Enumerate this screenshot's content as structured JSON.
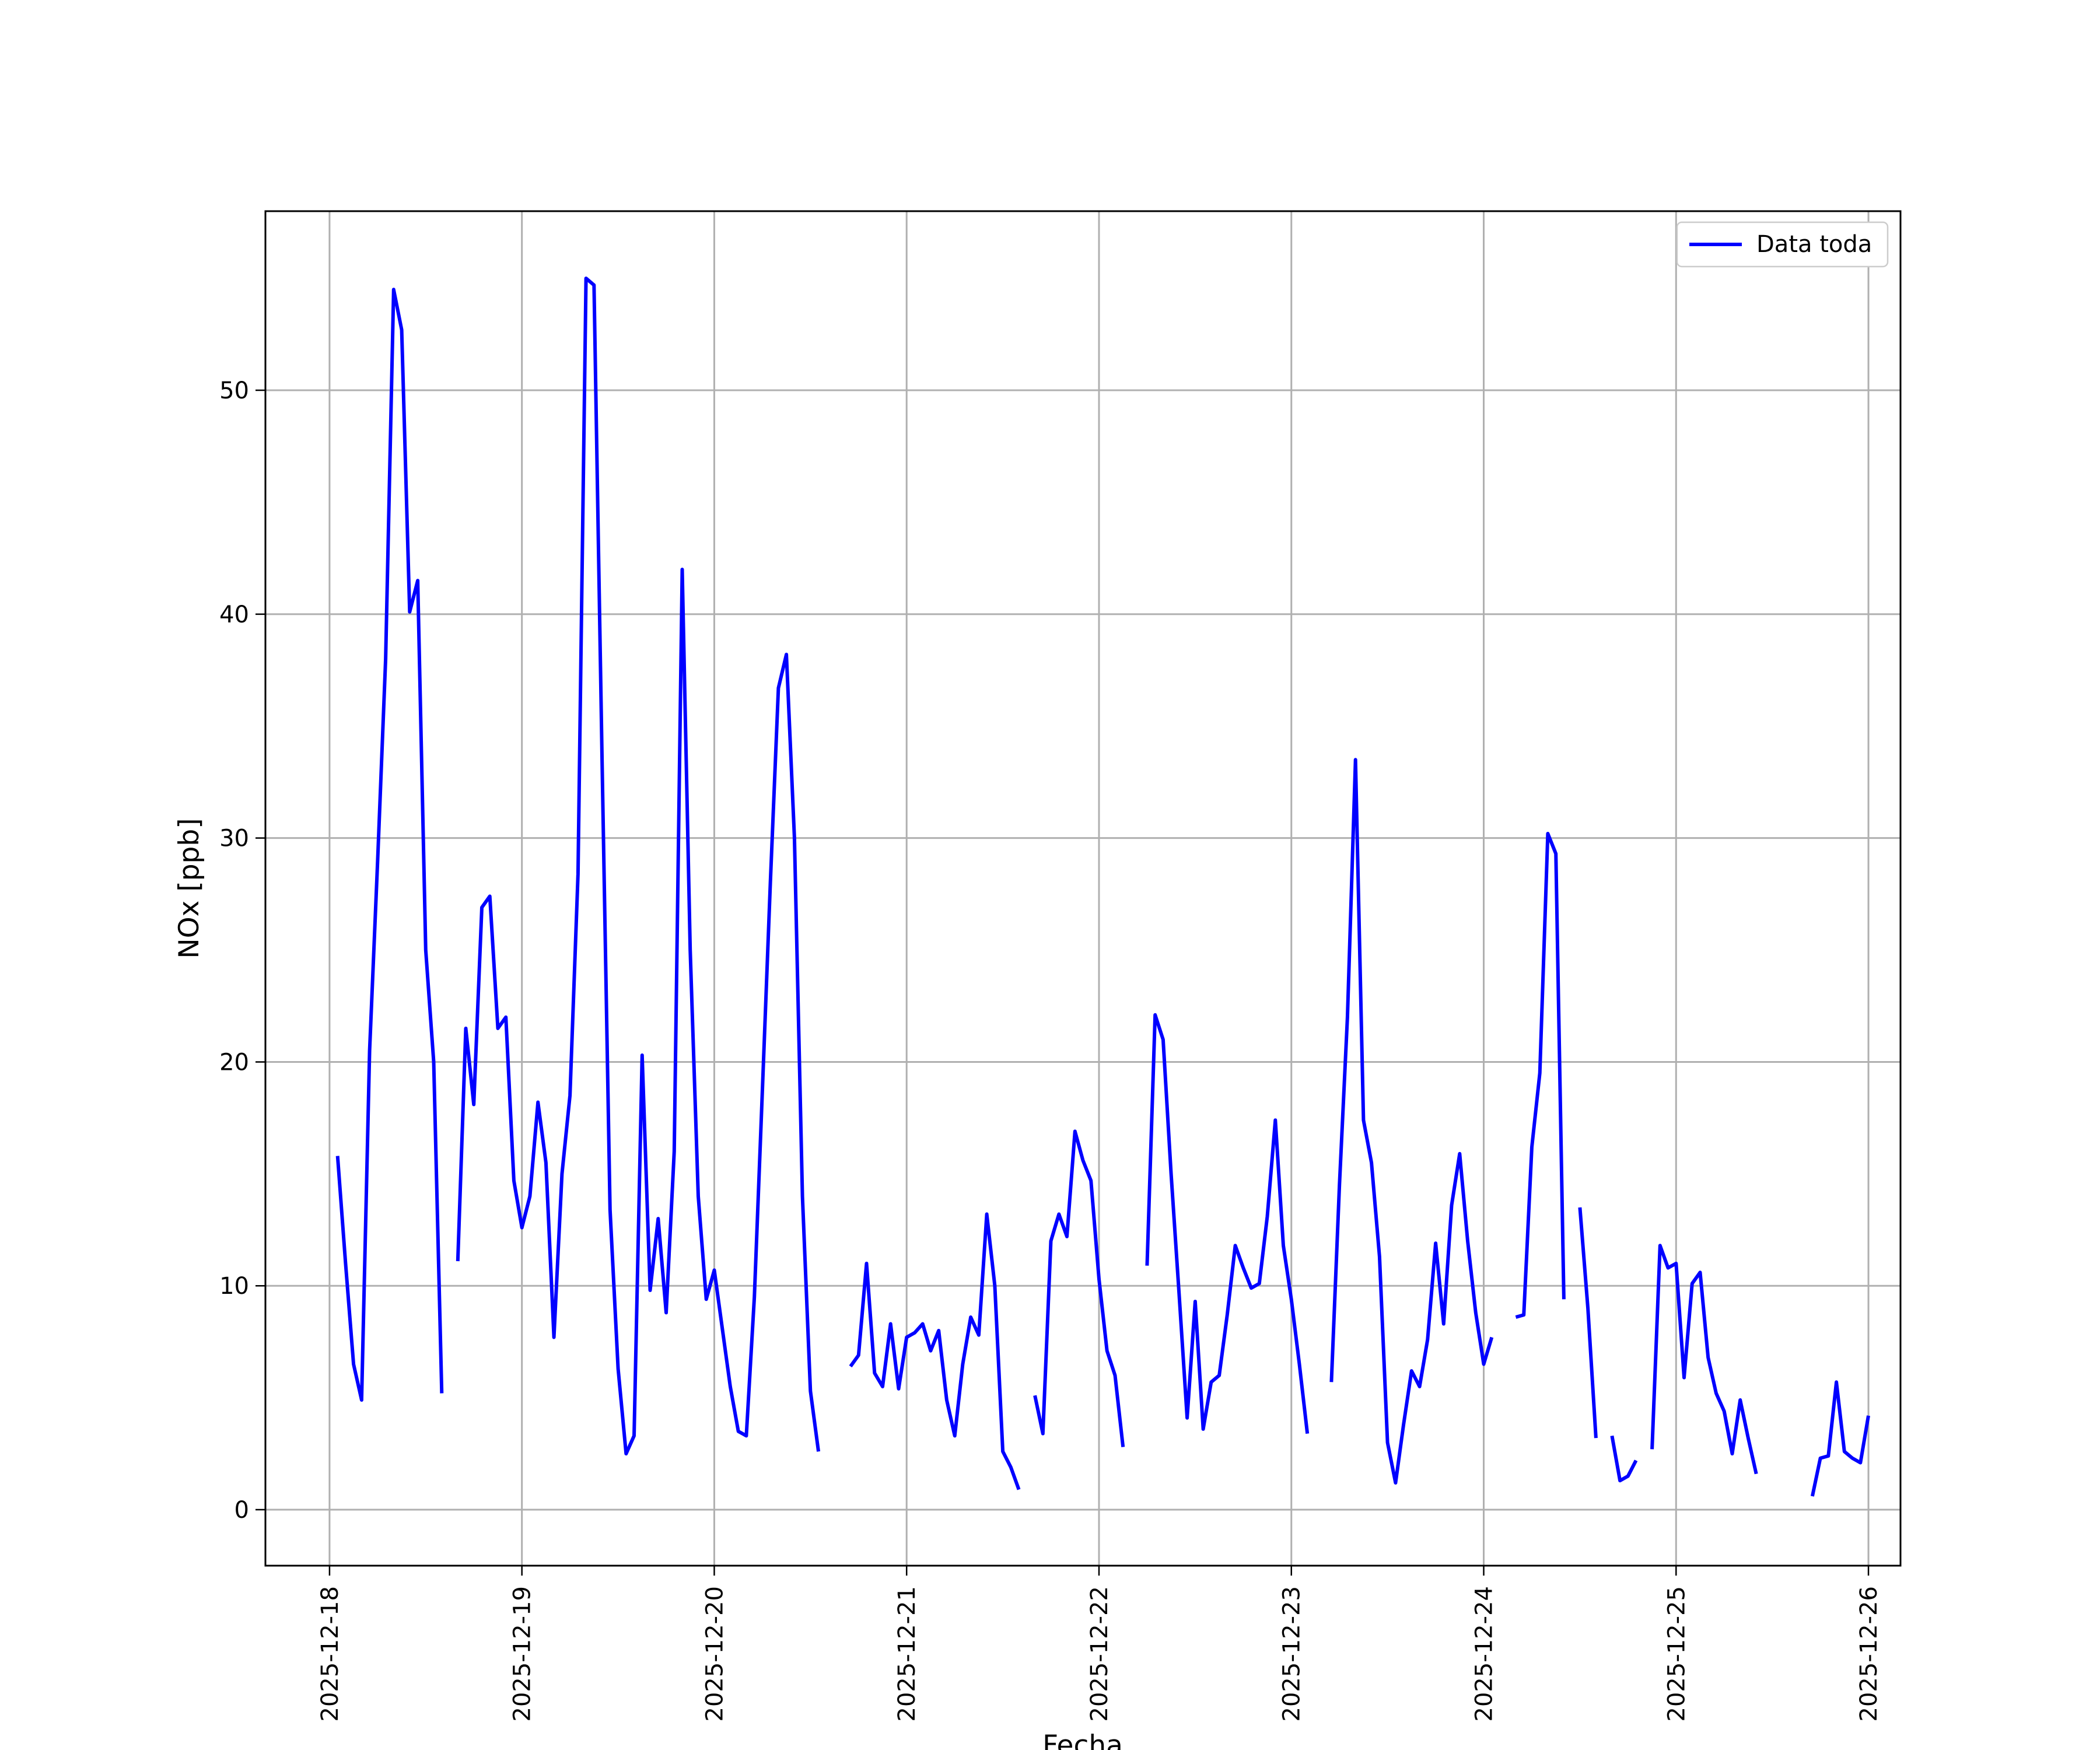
{
  "chart_data": {
    "type": "line",
    "title": "",
    "xlabel": "Fecha",
    "ylabel_main": "NOx ",
    "ylabel_unit": "[ppb]",
    "legend_location": "upper right",
    "grid": true,
    "xlim": [
      "2025-12-17T16:00",
      "2025-12-26T04:00"
    ],
    "ylim": [
      -2.5,
      58
    ],
    "x_ticks": [
      "2025-12-18",
      "2025-12-19",
      "2025-12-20",
      "2025-12-21",
      "2025-12-22",
      "2025-12-23",
      "2025-12-24",
      "2025-12-25",
      "2025-12-26"
    ],
    "y_ticks": [
      0,
      10,
      20,
      30,
      40,
      50
    ],
    "series": [
      {
        "name": "Data toda",
        "color": "#0000ff",
        "segments": [
          [
            [
              "2025-12-18T01:00",
              15.8
            ],
            [
              "2025-12-18T02:00",
              11.0
            ],
            [
              "2025-12-18T03:00",
              6.5
            ],
            [
              "2025-12-18T04:00",
              4.9
            ],
            [
              "2025-12-18T05:00",
              20.5
            ],
            [
              "2025-12-18T06:00",
              29.0
            ],
            [
              "2025-12-18T07:00",
              38.0
            ],
            [
              "2025-12-18T08:00",
              54.5
            ],
            [
              "2025-12-18T09:00",
              52.7
            ],
            [
              "2025-12-18T10:00",
              40.1
            ],
            [
              "2025-12-18T11:00",
              41.5
            ],
            [
              "2025-12-18T12:00",
              25.0
            ],
            [
              "2025-12-18T13:00",
              20.0
            ],
            [
              "2025-12-18T14:00",
              5.2
            ]
          ],
          [
            [
              "2025-12-18T16:00",
              11.1
            ],
            [
              "2025-12-18T17:00",
              21.5
            ],
            [
              "2025-12-18T18:00",
              18.1
            ],
            [
              "2025-12-18T19:00",
              26.9
            ],
            [
              "2025-12-18T20:00",
              27.4
            ],
            [
              "2025-12-18T21:00",
              21.5
            ],
            [
              "2025-12-18T22:00",
              22.0
            ],
            [
              "2025-12-18T23:00",
              14.7
            ],
            [
              "2025-12-19T00:00",
              12.6
            ],
            [
              "2025-12-19T01:00",
              14.0
            ],
            [
              "2025-12-19T02:00",
              18.2
            ],
            [
              "2025-12-19T03:00",
              15.5
            ],
            [
              "2025-12-19T04:00",
              7.7
            ],
            [
              "2025-12-19T05:00",
              15.0
            ],
            [
              "2025-12-19T06:00",
              18.5
            ],
            [
              "2025-12-19T07:00",
              28.4
            ],
            [
              "2025-12-19T08:00",
              55.0
            ],
            [
              "2025-12-19T09:00",
              54.7
            ],
            [
              "2025-12-19T10:00",
              33.5
            ],
            [
              "2025-12-19T11:00",
              13.4
            ],
            [
              "2025-12-19T12:00",
              6.3
            ],
            [
              "2025-12-19T13:00",
              2.5
            ],
            [
              "2025-12-19T14:00",
              3.3
            ],
            [
              "2025-12-19T15:00",
              20.3
            ],
            [
              "2025-12-19T16:00",
              9.8
            ],
            [
              "2025-12-19T17:00",
              13.0
            ],
            [
              "2025-12-19T18:00",
              8.8
            ],
            [
              "2025-12-19T19:00",
              16.0
            ],
            [
              "2025-12-19T20:00",
              42.0
            ],
            [
              "2025-12-19T21:00",
              25.0
            ],
            [
              "2025-12-19T22:00",
              14.0
            ],
            [
              "2025-12-19T23:00",
              9.4
            ],
            [
              "2025-12-20T00:00",
              10.7
            ],
            [
              "2025-12-20T01:00",
              8.1
            ],
            [
              "2025-12-20T02:00",
              5.5
            ],
            [
              "2025-12-20T03:00",
              3.5
            ],
            [
              "2025-12-20T04:00",
              3.3
            ],
            [
              "2025-12-20T05:00",
              9.5
            ],
            [
              "2025-12-20T06:00",
              18.7
            ],
            [
              "2025-12-20T07:00",
              28.0
            ],
            [
              "2025-12-20T08:00",
              36.7
            ],
            [
              "2025-12-20T09:00",
              38.2
            ],
            [
              "2025-12-20T10:00",
              30.0
            ],
            [
              "2025-12-20T11:00",
              14.0
            ],
            [
              "2025-12-20T12:00",
              5.3
            ],
            [
              "2025-12-20T13:00",
              2.6
            ]
          ],
          [
            [
              "2025-12-20T17:00",
              6.4
            ],
            [
              "2025-12-20T18:00",
              6.9
            ],
            [
              "2025-12-20T19:00",
              11.0
            ],
            [
              "2025-12-20T20:00",
              6.1
            ],
            [
              "2025-12-20T21:00",
              5.5
            ],
            [
              "2025-12-20T22:00",
              8.3
            ],
            [
              "2025-12-20T23:00",
              5.4
            ],
            [
              "2025-12-21T00:00",
              7.7
            ],
            [
              "2025-12-21T01:00",
              7.9
            ],
            [
              "2025-12-21T02:00",
              8.3
            ],
            [
              "2025-12-21T03:00",
              7.1
            ],
            [
              "2025-12-21T04:00",
              8.0
            ],
            [
              "2025-12-21T05:00",
              4.9
            ],
            [
              "2025-12-21T06:00",
              3.3
            ],
            [
              "2025-12-21T07:00",
              6.5
            ],
            [
              "2025-12-21T08:00",
              8.6
            ],
            [
              "2025-12-21T09:00",
              7.8
            ],
            [
              "2025-12-21T10:00",
              13.2
            ],
            [
              "2025-12-21T11:00",
              10.0
            ],
            [
              "2025-12-21T12:00",
              2.6
            ],
            [
              "2025-12-21T13:00",
              1.9
            ],
            [
              "2025-12-21T14:00",
              0.9
            ]
          ],
          [
            [
              "2025-12-21T16:00",
              5.1
            ],
            [
              "2025-12-21T17:00",
              3.4
            ],
            [
              "2025-12-21T18:00",
              12.0
            ],
            [
              "2025-12-21T19:00",
              13.2
            ],
            [
              "2025-12-21T20:00",
              12.2
            ],
            [
              "2025-12-21T21:00",
              16.9
            ],
            [
              "2025-12-21T22:00",
              15.6
            ],
            [
              "2025-12-21T23:00",
              14.7
            ],
            [
              "2025-12-22T00:00",
              10.3
            ],
            [
              "2025-12-22T01:00",
              7.1
            ],
            [
              "2025-12-22T02:00",
              6.0
            ],
            [
              "2025-12-22T03:00",
              2.8
            ]
          ],
          [
            [
              "2025-12-22T06:00",
              10.9
            ],
            [
              "2025-12-22T07:00",
              22.1
            ],
            [
              "2025-12-22T08:00",
              21.0
            ],
            [
              "2025-12-22T09:00",
              15.0
            ],
            [
              "2025-12-22T10:00",
              9.6
            ],
            [
              "2025-12-22T11:00",
              4.1
            ],
            [
              "2025-12-22T12:00",
              9.3
            ],
            [
              "2025-12-22T13:00",
              3.6
            ],
            [
              "2025-12-22T14:00",
              5.7
            ],
            [
              "2025-12-22T15:00",
              6.0
            ],
            [
              "2025-12-22T16:00",
              8.7
            ],
            [
              "2025-12-22T17:00",
              11.8
            ],
            [
              "2025-12-22T18:00",
              10.8
            ],
            [
              "2025-12-22T19:00",
              9.9
            ],
            [
              "2025-12-22T20:00",
              10.1
            ],
            [
              "2025-12-22T21:00",
              13.1
            ],
            [
              "2025-12-22T22:00",
              17.4
            ],
            [
              "2025-12-22T23:00",
              11.8
            ],
            [
              "2025-12-23T00:00",
              9.4
            ],
            [
              "2025-12-23T01:00",
              6.5
            ],
            [
              "2025-12-23T02:00",
              3.4
            ]
          ],
          [
            [
              "2025-12-23T05:00",
              5.7
            ],
            [
              "2025-12-23T06:00",
              14.5
            ],
            [
              "2025-12-23T07:00",
              22.0
            ],
            [
              "2025-12-23T08:00",
              33.5
            ],
            [
              "2025-12-23T09:00",
              17.4
            ],
            [
              "2025-12-23T10:00",
              15.5
            ],
            [
              "2025-12-23T11:00",
              11.3
            ],
            [
              "2025-12-23T12:00",
              3.0
            ],
            [
              "2025-12-23T13:00",
              1.2
            ],
            [
              "2025-12-23T14:00",
              3.8
            ],
            [
              "2025-12-23T15:00",
              6.2
            ],
            [
              "2025-12-23T16:00",
              5.5
            ],
            [
              "2025-12-23T17:00",
              7.6
            ],
            [
              "2025-12-23T18:00",
              11.9
            ],
            [
              "2025-12-23T19:00",
              8.3
            ],
            [
              "2025-12-23T20:00",
              13.6
            ],
            [
              "2025-12-23T21:00",
              15.9
            ],
            [
              "2025-12-23T22:00",
              12.0
            ],
            [
              "2025-12-23T23:00",
              8.8
            ],
            [
              "2025-12-24T00:00",
              6.5
            ],
            [
              "2025-12-24T01:00",
              7.7
            ]
          ],
          [
            [
              "2025-12-24T04:00",
              8.6
            ],
            [
              "2025-12-24T05:00",
              8.7
            ],
            [
              "2025-12-24T06:00",
              16.2
            ],
            [
              "2025-12-24T07:00",
              19.5
            ],
            [
              "2025-12-24T08:00",
              30.2
            ],
            [
              "2025-12-24T09:00",
              29.3
            ],
            [
              "2025-12-24T10:00",
              9.4
            ]
          ],
          [
            [
              "2025-12-24T12:00",
              13.5
            ],
            [
              "2025-12-24T13:00",
              9.0
            ],
            [
              "2025-12-24T14:00",
              3.2
            ]
          ],
          [
            [
              "2025-12-24T16:00",
              3.3
            ],
            [
              "2025-12-24T17:00",
              1.3
            ],
            [
              "2025-12-24T18:00",
              1.5
            ],
            [
              "2025-12-24T19:00",
              2.2
            ]
          ],
          [
            [
              "2025-12-24T21:00",
              2.7
            ],
            [
              "2025-12-24T22:00",
              11.8
            ],
            [
              "2025-12-24T23:00",
              10.8
            ],
            [
              "2025-12-25T00:00",
              11.0
            ],
            [
              "2025-12-25T01:00",
              5.9
            ],
            [
              "2025-12-25T02:00",
              10.1
            ],
            [
              "2025-12-25T03:00",
              10.6
            ],
            [
              "2025-12-25T04:00",
              6.8
            ],
            [
              "2025-12-25T05:00",
              5.2
            ],
            [
              "2025-12-25T06:00",
              4.4
            ],
            [
              "2025-12-25T07:00",
              2.5
            ],
            [
              "2025-12-25T08:00",
              4.9
            ],
            [
              "2025-12-25T09:00",
              3.2
            ],
            [
              "2025-12-25T10:00",
              1.6
            ]
          ],
          [
            [
              "2025-12-25T17:00",
              0.6
            ],
            [
              "2025-12-25T18:00",
              2.3
            ],
            [
              "2025-12-25T19:00",
              2.4
            ],
            [
              "2025-12-25T20:00",
              5.7
            ],
            [
              "2025-12-25T21:00",
              2.6
            ],
            [
              "2025-12-25T22:00",
              2.3
            ],
            [
              "2025-12-25T23:00",
              2.1
            ],
            [
              "2025-12-26T00:00",
              4.2
            ]
          ]
        ]
      }
    ]
  }
}
